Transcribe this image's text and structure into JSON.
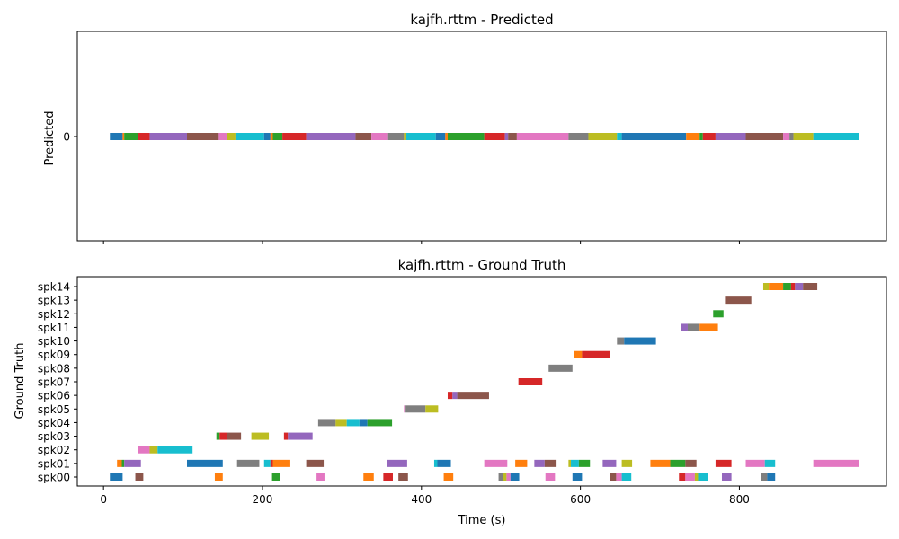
{
  "chart_data": [
    {
      "type": "timeline",
      "title": "kajfh.rttm - Predicted",
      "ylabel": "Predicted",
      "xlabel": "",
      "xlim": [
        -33,
        985
      ],
      "categories": [
        "0"
      ],
      "segments": [
        {
          "row": 0,
          "start": 8,
          "end": 24,
          "color": "#1f77b4"
        },
        {
          "row": 0,
          "start": 24,
          "end": 26,
          "color": "#ff7f0e"
        },
        {
          "row": 0,
          "start": 26,
          "end": 43,
          "color": "#2ca02c"
        },
        {
          "row": 0,
          "start": 43,
          "end": 58,
          "color": "#d62728"
        },
        {
          "row": 0,
          "start": 58,
          "end": 105,
          "color": "#9467bd"
        },
        {
          "row": 0,
          "start": 105,
          "end": 145,
          "color": "#8c564b"
        },
        {
          "row": 0,
          "start": 145,
          "end": 155,
          "color": "#e377c2"
        },
        {
          "row": 0,
          "start": 155,
          "end": 166,
          "color": "#bcbd22"
        },
        {
          "row": 0,
          "start": 166,
          "end": 202,
          "color": "#17becf"
        },
        {
          "row": 0,
          "start": 202,
          "end": 210,
          "color": "#1f77b4"
        },
        {
          "row": 0,
          "start": 210,
          "end": 213,
          "color": "#ff7f0e"
        },
        {
          "row": 0,
          "start": 213,
          "end": 225,
          "color": "#2ca02c"
        },
        {
          "row": 0,
          "start": 225,
          "end": 255,
          "color": "#d62728"
        },
        {
          "row": 0,
          "start": 255,
          "end": 317,
          "color": "#9467bd"
        },
        {
          "row": 0,
          "start": 317,
          "end": 337,
          "color": "#8c564b"
        },
        {
          "row": 0,
          "start": 337,
          "end": 358,
          "color": "#e377c2"
        },
        {
          "row": 0,
          "start": 358,
          "end": 378,
          "color": "#7f7f7f"
        },
        {
          "row": 0,
          "start": 378,
          "end": 381,
          "color": "#bcbd22"
        },
        {
          "row": 0,
          "start": 381,
          "end": 418,
          "color": "#17becf"
        },
        {
          "row": 0,
          "start": 418,
          "end": 430,
          "color": "#1f77b4"
        },
        {
          "row": 0,
          "start": 430,
          "end": 433,
          "color": "#ff7f0e"
        },
        {
          "row": 0,
          "start": 433,
          "end": 479,
          "color": "#2ca02c"
        },
        {
          "row": 0,
          "start": 479,
          "end": 505,
          "color": "#d62728"
        },
        {
          "row": 0,
          "start": 505,
          "end": 509,
          "color": "#9467bd"
        },
        {
          "row": 0,
          "start": 509,
          "end": 520,
          "color": "#8c564b"
        },
        {
          "row": 0,
          "start": 520,
          "end": 585,
          "color": "#e377c2"
        },
        {
          "row": 0,
          "start": 585,
          "end": 610,
          "color": "#7f7f7f"
        },
        {
          "row": 0,
          "start": 610,
          "end": 646,
          "color": "#bcbd22"
        },
        {
          "row": 0,
          "start": 646,
          "end": 652,
          "color": "#17becf"
        },
        {
          "row": 0,
          "start": 652,
          "end": 733,
          "color": "#1f77b4"
        },
        {
          "row": 0,
          "start": 733,
          "end": 750,
          "color": "#ff7f0e"
        },
        {
          "row": 0,
          "start": 750,
          "end": 754,
          "color": "#2ca02c"
        },
        {
          "row": 0,
          "start": 754,
          "end": 770,
          "color": "#d62728"
        },
        {
          "row": 0,
          "start": 770,
          "end": 808,
          "color": "#9467bd"
        },
        {
          "row": 0,
          "start": 808,
          "end": 855,
          "color": "#8c564b"
        },
        {
          "row": 0,
          "start": 855,
          "end": 863,
          "color": "#e377c2"
        },
        {
          "row": 0,
          "start": 863,
          "end": 868,
          "color": "#7f7f7f"
        },
        {
          "row": 0,
          "start": 868,
          "end": 893,
          "color": "#bcbd22"
        },
        {
          "row": 0,
          "start": 893,
          "end": 950,
          "color": "#17becf"
        }
      ]
    },
    {
      "type": "timeline",
      "title": "kajfh.rttm - Ground Truth",
      "ylabel": "Ground Truth",
      "xlabel": "Time (s)",
      "xlim": [
        -33,
        985
      ],
      "xticks": [
        0,
        200,
        400,
        600,
        800
      ],
      "categories": [
        "spk00",
        "spk01",
        "spk02",
        "spk03",
        "spk04",
        "spk05",
        "spk06",
        "spk07",
        "spk08",
        "spk09",
        "spk10",
        "spk11",
        "spk12",
        "spk13",
        "spk14"
      ],
      "segments": [
        {
          "row": 0,
          "start": 8,
          "end": 24,
          "color": "#1f77b4"
        },
        {
          "row": 0,
          "start": 40,
          "end": 50,
          "color": "#8c564b"
        },
        {
          "row": 0,
          "start": 140,
          "end": 150,
          "color": "#ff7f0e"
        },
        {
          "row": 0,
          "start": 212,
          "end": 222,
          "color": "#2ca02c"
        },
        {
          "row": 0,
          "start": 268,
          "end": 278,
          "color": "#e377c2"
        },
        {
          "row": 0,
          "start": 327,
          "end": 340,
          "color": "#ff7f0e"
        },
        {
          "row": 0,
          "start": 352,
          "end": 364,
          "color": "#d62728"
        },
        {
          "row": 0,
          "start": 371,
          "end": 383,
          "color": "#8c564b"
        },
        {
          "row": 0,
          "start": 428,
          "end": 440,
          "color": "#ff7f0e"
        },
        {
          "row": 0,
          "start": 497,
          "end": 503,
          "color": "#7f7f7f"
        },
        {
          "row": 0,
          "start": 503,
          "end": 507,
          "color": "#bcbd22"
        },
        {
          "row": 0,
          "start": 507,
          "end": 512,
          "color": "#e377c2"
        },
        {
          "row": 0,
          "start": 512,
          "end": 523,
          "color": "#1f77b4"
        },
        {
          "row": 0,
          "start": 556,
          "end": 568,
          "color": "#e377c2"
        },
        {
          "row": 0,
          "start": 590,
          "end": 602,
          "color": "#1f77b4"
        },
        {
          "row": 0,
          "start": 637,
          "end": 645,
          "color": "#8c564b"
        },
        {
          "row": 0,
          "start": 645,
          "end": 652,
          "color": "#e377c2"
        },
        {
          "row": 0,
          "start": 652,
          "end": 664,
          "color": "#17becf"
        },
        {
          "row": 0,
          "start": 724,
          "end": 732,
          "color": "#d62728"
        },
        {
          "row": 0,
          "start": 732,
          "end": 744,
          "color": "#e377c2"
        },
        {
          "row": 0,
          "start": 744,
          "end": 748,
          "color": "#bcbd22"
        },
        {
          "row": 0,
          "start": 748,
          "end": 760,
          "color": "#17becf"
        },
        {
          "row": 0,
          "start": 778,
          "end": 790,
          "color": "#9467bd"
        },
        {
          "row": 0,
          "start": 827,
          "end": 835,
          "color": "#7f7f7f"
        },
        {
          "row": 0,
          "start": 835,
          "end": 845,
          "color": "#1f77b4"
        },
        {
          "row": 1,
          "start": 17,
          "end": 23,
          "color": "#ff7f0e"
        },
        {
          "row": 1,
          "start": 23,
          "end": 26,
          "color": "#2ca02c"
        },
        {
          "row": 1,
          "start": 26,
          "end": 47,
          "color": "#9467bd"
        },
        {
          "row": 1,
          "start": 105,
          "end": 150,
          "color": "#1f77b4"
        },
        {
          "row": 1,
          "start": 168,
          "end": 196,
          "color": "#7f7f7f"
        },
        {
          "row": 1,
          "start": 202,
          "end": 210,
          "color": "#17becf"
        },
        {
          "row": 1,
          "start": 210,
          "end": 213,
          "color": "#d62728"
        },
        {
          "row": 1,
          "start": 213,
          "end": 235,
          "color": "#ff7f0e"
        },
        {
          "row": 1,
          "start": 255,
          "end": 277,
          "color": "#8c564b"
        },
        {
          "row": 1,
          "start": 357,
          "end": 382,
          "color": "#9467bd"
        },
        {
          "row": 1,
          "start": 416,
          "end": 420,
          "color": "#17becf"
        },
        {
          "row": 1,
          "start": 420,
          "end": 437,
          "color": "#1f77b4"
        },
        {
          "row": 1,
          "start": 479,
          "end": 508,
          "color": "#e377c2"
        },
        {
          "row": 1,
          "start": 518,
          "end": 533,
          "color": "#ff7f0e"
        },
        {
          "row": 1,
          "start": 542,
          "end": 555,
          "color": "#9467bd"
        },
        {
          "row": 1,
          "start": 555,
          "end": 570,
          "color": "#8c564b"
        },
        {
          "row": 1,
          "start": 585,
          "end": 588,
          "color": "#bcbd22"
        },
        {
          "row": 1,
          "start": 588,
          "end": 598,
          "color": "#17becf"
        },
        {
          "row": 1,
          "start": 598,
          "end": 612,
          "color": "#2ca02c"
        },
        {
          "row": 1,
          "start": 628,
          "end": 645,
          "color": "#9467bd"
        },
        {
          "row": 1,
          "start": 652,
          "end": 665,
          "color": "#bcbd22"
        },
        {
          "row": 1,
          "start": 688,
          "end": 713,
          "color": "#ff7f0e"
        },
        {
          "row": 1,
          "start": 713,
          "end": 732,
          "color": "#2ca02c"
        },
        {
          "row": 1,
          "start": 732,
          "end": 746,
          "color": "#8c564b"
        },
        {
          "row": 1,
          "start": 770,
          "end": 790,
          "color": "#d62728"
        },
        {
          "row": 1,
          "start": 808,
          "end": 832,
          "color": "#e377c2"
        },
        {
          "row": 1,
          "start": 832,
          "end": 845,
          "color": "#17becf"
        },
        {
          "row": 1,
          "start": 893,
          "end": 950,
          "color": "#e377c2"
        },
        {
          "row": 2,
          "start": 43,
          "end": 58,
          "color": "#e377c2"
        },
        {
          "row": 2,
          "start": 58,
          "end": 68,
          "color": "#bcbd22"
        },
        {
          "row": 2,
          "start": 68,
          "end": 112,
          "color": "#17becf"
        },
        {
          "row": 3,
          "start": 142,
          "end": 146,
          "color": "#2ca02c"
        },
        {
          "row": 3,
          "start": 146,
          "end": 155,
          "color": "#d62728"
        },
        {
          "row": 3,
          "start": 155,
          "end": 173,
          "color": "#8c564b"
        },
        {
          "row": 3,
          "start": 186,
          "end": 208,
          "color": "#bcbd22"
        },
        {
          "row": 3,
          "start": 227,
          "end": 232,
          "color": "#d62728"
        },
        {
          "row": 3,
          "start": 232,
          "end": 263,
          "color": "#9467bd"
        },
        {
          "row": 4,
          "start": 270,
          "end": 292,
          "color": "#7f7f7f"
        },
        {
          "row": 4,
          "start": 292,
          "end": 306,
          "color": "#bcbd22"
        },
        {
          "row": 4,
          "start": 306,
          "end": 322,
          "color": "#17becf"
        },
        {
          "row": 4,
          "start": 322,
          "end": 332,
          "color": "#1f77b4"
        },
        {
          "row": 4,
          "start": 332,
          "end": 363,
          "color": "#2ca02c"
        },
        {
          "row": 5,
          "start": 378,
          "end": 380,
          "color": "#e377c2"
        },
        {
          "row": 5,
          "start": 380,
          "end": 405,
          "color": "#7f7f7f"
        },
        {
          "row": 5,
          "start": 405,
          "end": 421,
          "color": "#bcbd22"
        },
        {
          "row": 6,
          "start": 433,
          "end": 439,
          "color": "#d62728"
        },
        {
          "row": 6,
          "start": 439,
          "end": 445,
          "color": "#9467bd"
        },
        {
          "row": 6,
          "start": 445,
          "end": 485,
          "color": "#8c564b"
        },
        {
          "row": 7,
          "start": 522,
          "end": 552,
          "color": "#d62728"
        },
        {
          "row": 8,
          "start": 560,
          "end": 590,
          "color": "#7f7f7f"
        },
        {
          "row": 9,
          "start": 592,
          "end": 602,
          "color": "#ff7f0e"
        },
        {
          "row": 9,
          "start": 602,
          "end": 637,
          "color": "#d62728"
        },
        {
          "row": 10,
          "start": 646,
          "end": 655,
          "color": "#7f7f7f"
        },
        {
          "row": 10,
          "start": 655,
          "end": 695,
          "color": "#1f77b4"
        },
        {
          "row": 11,
          "start": 727,
          "end": 735,
          "color": "#9467bd"
        },
        {
          "row": 11,
          "start": 735,
          "end": 750,
          "color": "#7f7f7f"
        },
        {
          "row": 11,
          "start": 750,
          "end": 773,
          "color": "#ff7f0e"
        },
        {
          "row": 12,
          "start": 767,
          "end": 780,
          "color": "#2ca02c"
        },
        {
          "row": 13,
          "start": 783,
          "end": 815,
          "color": "#8c564b"
        },
        {
          "row": 14,
          "start": 830,
          "end": 837,
          "color": "#bcbd22"
        },
        {
          "row": 14,
          "start": 837,
          "end": 855,
          "color": "#ff7f0e"
        },
        {
          "row": 14,
          "start": 855,
          "end": 865,
          "color": "#2ca02c"
        },
        {
          "row": 14,
          "start": 865,
          "end": 870,
          "color": "#d62728"
        },
        {
          "row": 14,
          "start": 870,
          "end": 880,
          "color": "#9467bd"
        },
        {
          "row": 14,
          "start": 880,
          "end": 898,
          "color": "#8c564b"
        }
      ]
    }
  ]
}
